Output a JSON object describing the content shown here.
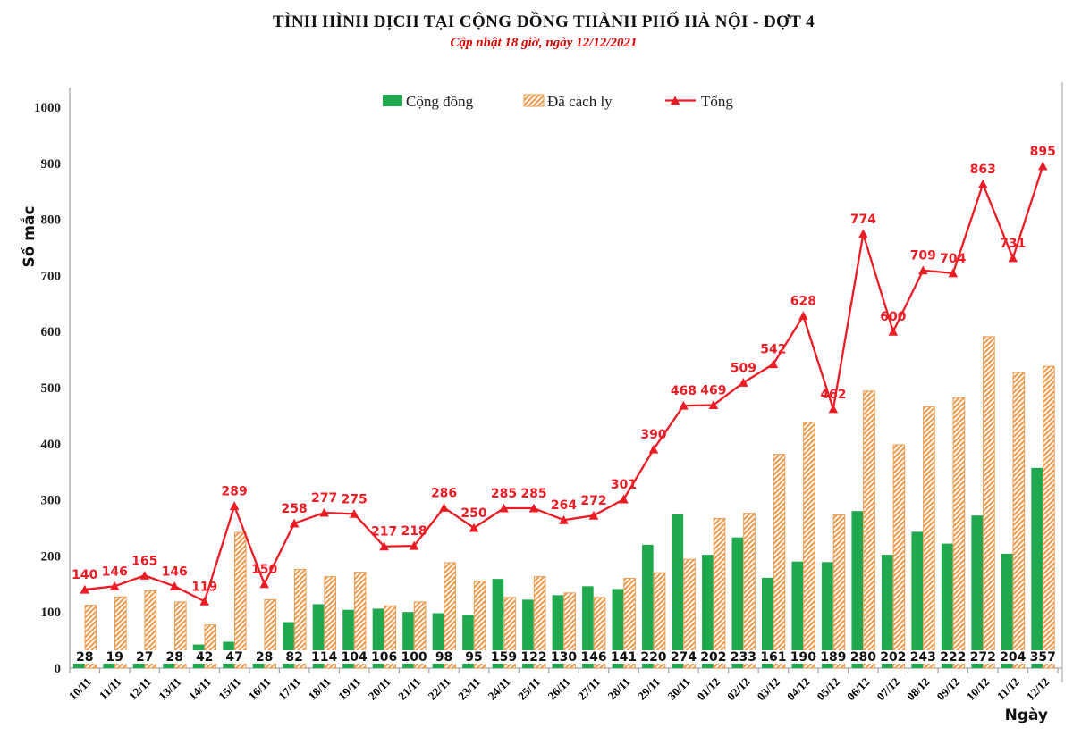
{
  "chart_data": {
    "type": "composed",
    "title": "TÌNH HÌNH DỊCH TẠI CỘNG ĐỒNG THÀNH PHỐ HÀ NỘI - ĐỢT 4",
    "subtitle": "Cập nhật 18 giờ, ngày 12/12/2021",
    "ylabel": "Số mắc",
    "xlabel": "Ngày",
    "ylim": [
      0,
      1000
    ],
    "ytick_step": 100,
    "grid": false,
    "legend_position": "top-center",
    "categories": [
      "10/11",
      "11/11",
      "12/11",
      "13/11",
      "14/11",
      "15/11",
      "16/11",
      "17/11",
      "18/11",
      "19/11",
      "20/11",
      "21/11",
      "22/11",
      "23/11",
      "24/11",
      "25/11",
      "26/11",
      "27/11",
      "28/11",
      "29/11",
      "30/11",
      "01/12",
      "02/12",
      "03/12",
      "04/12",
      "05/12",
      "06/12",
      "07/12",
      "08/12",
      "09/12",
      "10/12",
      "11/12",
      "12/12"
    ],
    "series": [
      {
        "name": "Cộng đồng",
        "type": "bar",
        "style": "solid",
        "color": "#20A84E",
        "values": [
          28,
          19,
          27,
          28,
          42,
          47,
          28,
          82,
          114,
          104,
          106,
          100,
          98,
          95,
          159,
          122,
          130,
          146,
          141,
          220,
          274,
          202,
          233,
          161,
          190,
          189,
          280,
          202,
          243,
          222,
          272,
          204,
          357
        ],
        "labels_shown": "at-bar-base-black"
      },
      {
        "name": "Đã cách ly",
        "type": "bar",
        "style": "hatched-diagonal",
        "color": "#ED9C52",
        "values": [
          112,
          127,
          138,
          118,
          77,
          242,
          122,
          176,
          163,
          171,
          111,
          118,
          188,
          155,
          126,
          163,
          134,
          126,
          160,
          170,
          194,
          267,
          276,
          381,
          438,
          273,
          494,
          398,
          466,
          482,
          591,
          527,
          538
        ],
        "labels_shown": "none"
      },
      {
        "name": "Tổng",
        "type": "line",
        "marker": "triangle-up",
        "color": "#EC1C24",
        "values": [
          140,
          146,
          165,
          146,
          119,
          289,
          150,
          258,
          277,
          275,
          217,
          218,
          286,
          250,
          285,
          285,
          264,
          272,
          301,
          390,
          468,
          469,
          509,
          542,
          628,
          462,
          774,
          600,
          709,
          704,
          863,
          731,
          895
        ],
        "labels_shown": "above-points-red"
      }
    ]
  },
  "legend": [
    {
      "label": "Cộng đồng",
      "swatch": "solid-green"
    },
    {
      "label": "Đã cách ly",
      "swatch": "hatch-orange"
    },
    {
      "label": "Tổng",
      "swatch": "red-line-triangle"
    }
  ],
  "colors": {
    "community_bar": "#20A84E",
    "quarantine_hatch": "#ED9C52",
    "total_line": "#EC1C24",
    "subtitle_red": "#d40000",
    "axis_gray": "#a6a6a6",
    "label_black": "#111111"
  }
}
